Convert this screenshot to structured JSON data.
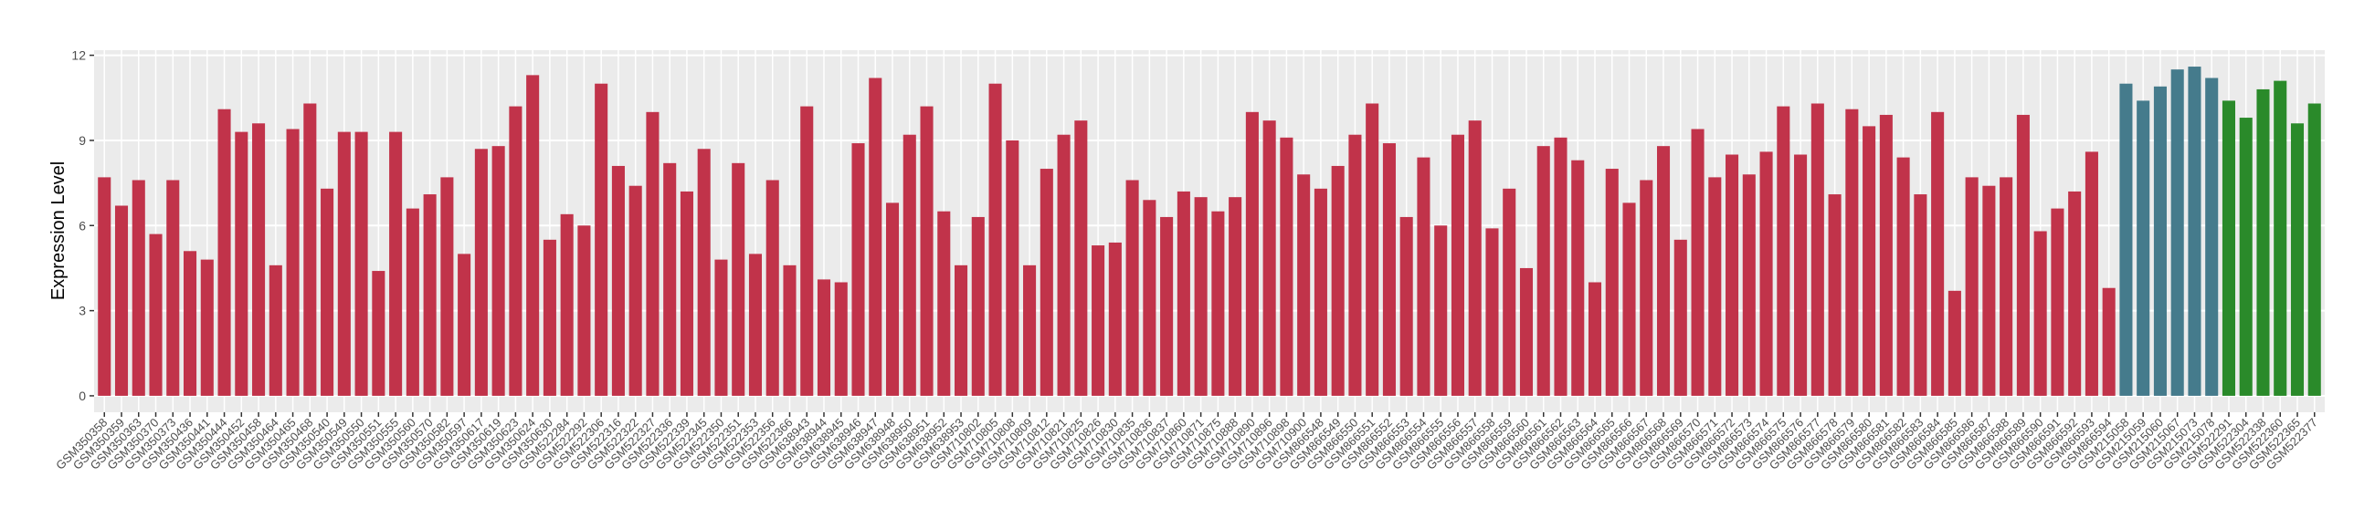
{
  "chart_data": {
    "type": "bar",
    "y_label": "Expression Level",
    "categories": [
      "GSM350358",
      "GSM350359",
      "GSM350363",
      "GSM350370",
      "GSM350373",
      "GSM350436",
      "GSM350441",
      "GSM350444",
      "GSM350452",
      "GSM350458",
      "GSM350464",
      "GSM350465",
      "GSM350468",
      "GSM350540",
      "GSM350549",
      "GSM350550",
      "GSM350551",
      "GSM350555",
      "GSM350560",
      "GSM350570",
      "GSM350582",
      "GSM350597",
      "GSM350617",
      "GSM350619",
      "GSM350623",
      "GSM350624",
      "GSM350630",
      "GSM522284",
      "GSM522292",
      "GSM522306",
      "GSM522316",
      "GSM522322",
      "GSM522327",
      "GSM522336",
      "GSM522339",
      "GSM522345",
      "GSM522350",
      "GSM522351",
      "GSM522353",
      "GSM522356",
      "GSM522366",
      "GSM638943",
      "GSM638944",
      "GSM638945",
      "GSM638946",
      "GSM638947",
      "GSM638948",
      "GSM638950",
      "GSM638951",
      "GSM638952",
      "GSM638953",
      "GSM710802",
      "GSM710805",
      "GSM710808",
      "GSM710809",
      "GSM710812",
      "GSM710821",
      "GSM710825",
      "GSM710826",
      "GSM710830",
      "GSM710835",
      "GSM710836",
      "GSM710837",
      "GSM710860",
      "GSM710871",
      "GSM710875",
      "GSM710888",
      "GSM710890",
      "GSM710896",
      "GSM710898",
      "GSM710900",
      "GSM866548",
      "GSM866549",
      "GSM866550",
      "GSM866551",
      "GSM866552",
      "GSM866553",
      "GSM866554",
      "GSM866555",
      "GSM866556",
      "GSM866557",
      "GSM866558",
      "GSM866559",
      "GSM866560",
      "GSM866561",
      "GSM866562",
      "GSM866563",
      "GSM866564",
      "GSM866565",
      "GSM866566",
      "GSM866567",
      "GSM866568",
      "GSM866569",
      "GSM866570",
      "GSM866571",
      "GSM866572",
      "GSM866573",
      "GSM866574",
      "GSM866575",
      "GSM866576",
      "GSM866577",
      "GSM866578",
      "GSM866579",
      "GSM866580",
      "GSM866581",
      "GSM866582",
      "GSM866583",
      "GSM866584",
      "GSM866585",
      "GSM866586",
      "GSM866587",
      "GSM866588",
      "GSM866589",
      "GSM866590",
      "GSM866591",
      "GSM866592",
      "GSM866593",
      "GSM866594",
      "GSM215058",
      "GSM215059",
      "GSM215060",
      "GSM215067",
      "GSM215073",
      "GSM215078",
      "GSM522291",
      "GSM522304",
      "GSM522338",
      "GSM522360",
      "GSM522365",
      "GSM522377"
    ],
    "values": [
      7.7,
      6.7,
      7.6,
      5.7,
      7.6,
      5.1,
      4.8,
      10.1,
      9.3,
      9.6,
      4.6,
      9.4,
      10.3,
      7.3,
      9.3,
      9.3,
      4.4,
      9.3,
      6.6,
      7.1,
      7.7,
      5.0,
      8.7,
      8.8,
      10.2,
      11.3,
      5.5,
      6.4,
      6.0,
      11.0,
      8.1,
      7.4,
      10.0,
      8.2,
      7.2,
      8.7,
      4.8,
      8.2,
      5.0,
      7.6,
      4.6,
      10.2,
      4.1,
      4.0,
      8.9,
      11.2,
      6.8,
      9.2,
      10.2,
      6.5,
      4.6,
      6.3,
      11.0,
      9.0,
      4.6,
      8.0,
      9.2,
      9.7,
      5.3,
      5.4,
      7.6,
      6.9,
      6.3,
      7.2,
      7.0,
      6.5,
      7.0,
      10.0,
      9.7,
      9.1,
      7.8,
      7.3,
      8.1,
      9.2,
      10.3,
      8.9,
      6.3,
      8.4,
      6.0,
      9.2,
      9.7,
      5.9,
      7.3,
      4.5,
      8.8,
      9.1,
      8.3,
      4.0,
      8.0,
      6.8,
      7.6,
      8.8,
      5.5,
      9.4,
      7.7,
      8.5,
      7.8,
      8.6,
      10.2,
      8.5,
      10.3,
      7.1,
      10.1,
      9.5,
      9.9,
      8.4,
      7.1,
      10.0,
      3.7,
      7.7,
      7.4,
      7.7,
      9.9,
      5.8,
      6.6,
      7.2,
      8.6,
      3.8,
      11.0,
      10.4,
      10.9,
      11.5,
      11.6,
      11.2,
      10.4,
      9.8,
      10.8,
      11.1,
      9.6,
      10.3
    ],
    "colors": [
      "#c1334a",
      "#c1334a",
      "#c1334a",
      "#c1334a",
      "#c1334a",
      "#c1334a",
      "#c1334a",
      "#c1334a",
      "#c1334a",
      "#c1334a",
      "#c1334a",
      "#c1334a",
      "#c1334a",
      "#c1334a",
      "#c1334a",
      "#c1334a",
      "#c1334a",
      "#c1334a",
      "#c1334a",
      "#c1334a",
      "#c1334a",
      "#c1334a",
      "#c1334a",
      "#c1334a",
      "#c1334a",
      "#c1334a",
      "#c1334a",
      "#c1334a",
      "#c1334a",
      "#c1334a",
      "#c1334a",
      "#c1334a",
      "#c1334a",
      "#c1334a",
      "#c1334a",
      "#c1334a",
      "#c1334a",
      "#c1334a",
      "#c1334a",
      "#c1334a",
      "#c1334a",
      "#c1334a",
      "#c1334a",
      "#c1334a",
      "#c1334a",
      "#c1334a",
      "#c1334a",
      "#c1334a",
      "#c1334a",
      "#c1334a",
      "#c1334a",
      "#c1334a",
      "#c1334a",
      "#c1334a",
      "#c1334a",
      "#c1334a",
      "#c1334a",
      "#c1334a",
      "#c1334a",
      "#c1334a",
      "#c1334a",
      "#c1334a",
      "#c1334a",
      "#c1334a",
      "#c1334a",
      "#c1334a",
      "#c1334a",
      "#c1334a",
      "#c1334a",
      "#c1334a",
      "#c1334a",
      "#c1334a",
      "#c1334a",
      "#c1334a",
      "#c1334a",
      "#c1334a",
      "#c1334a",
      "#c1334a",
      "#c1334a",
      "#c1334a",
      "#c1334a",
      "#c1334a",
      "#c1334a",
      "#c1334a",
      "#c1334a",
      "#c1334a",
      "#c1334a",
      "#c1334a",
      "#c1334a",
      "#c1334a",
      "#c1334a",
      "#c1334a",
      "#c1334a",
      "#c1334a",
      "#c1334a",
      "#c1334a",
      "#c1334a",
      "#c1334a",
      "#c1334a",
      "#c1334a",
      "#c1334a",
      "#c1334a",
      "#c1334a",
      "#c1334a",
      "#c1334a",
      "#c1334a",
      "#c1334a",
      "#c1334a",
      "#c1334a",
      "#c1334a",
      "#c1334a",
      "#c1334a",
      "#c1334a",
      "#c1334a",
      "#c1334a",
      "#c1334a",
      "#c1334a",
      "#c1334a",
      "#457b8c",
      "#457b8c",
      "#457b8c",
      "#457b8c",
      "#457b8c",
      "#457b8c",
      "#2a8a2a",
      "#2a8a2a",
      "#2a8a2a",
      "#2a8a2a",
      "#2a8a2a",
      "#2a8a2a"
    ],
    "ylim": [
      -0.58,
      12.18
    ],
    "yticks": [
      0,
      3,
      6,
      9,
      12
    ],
    "grid": true
  }
}
